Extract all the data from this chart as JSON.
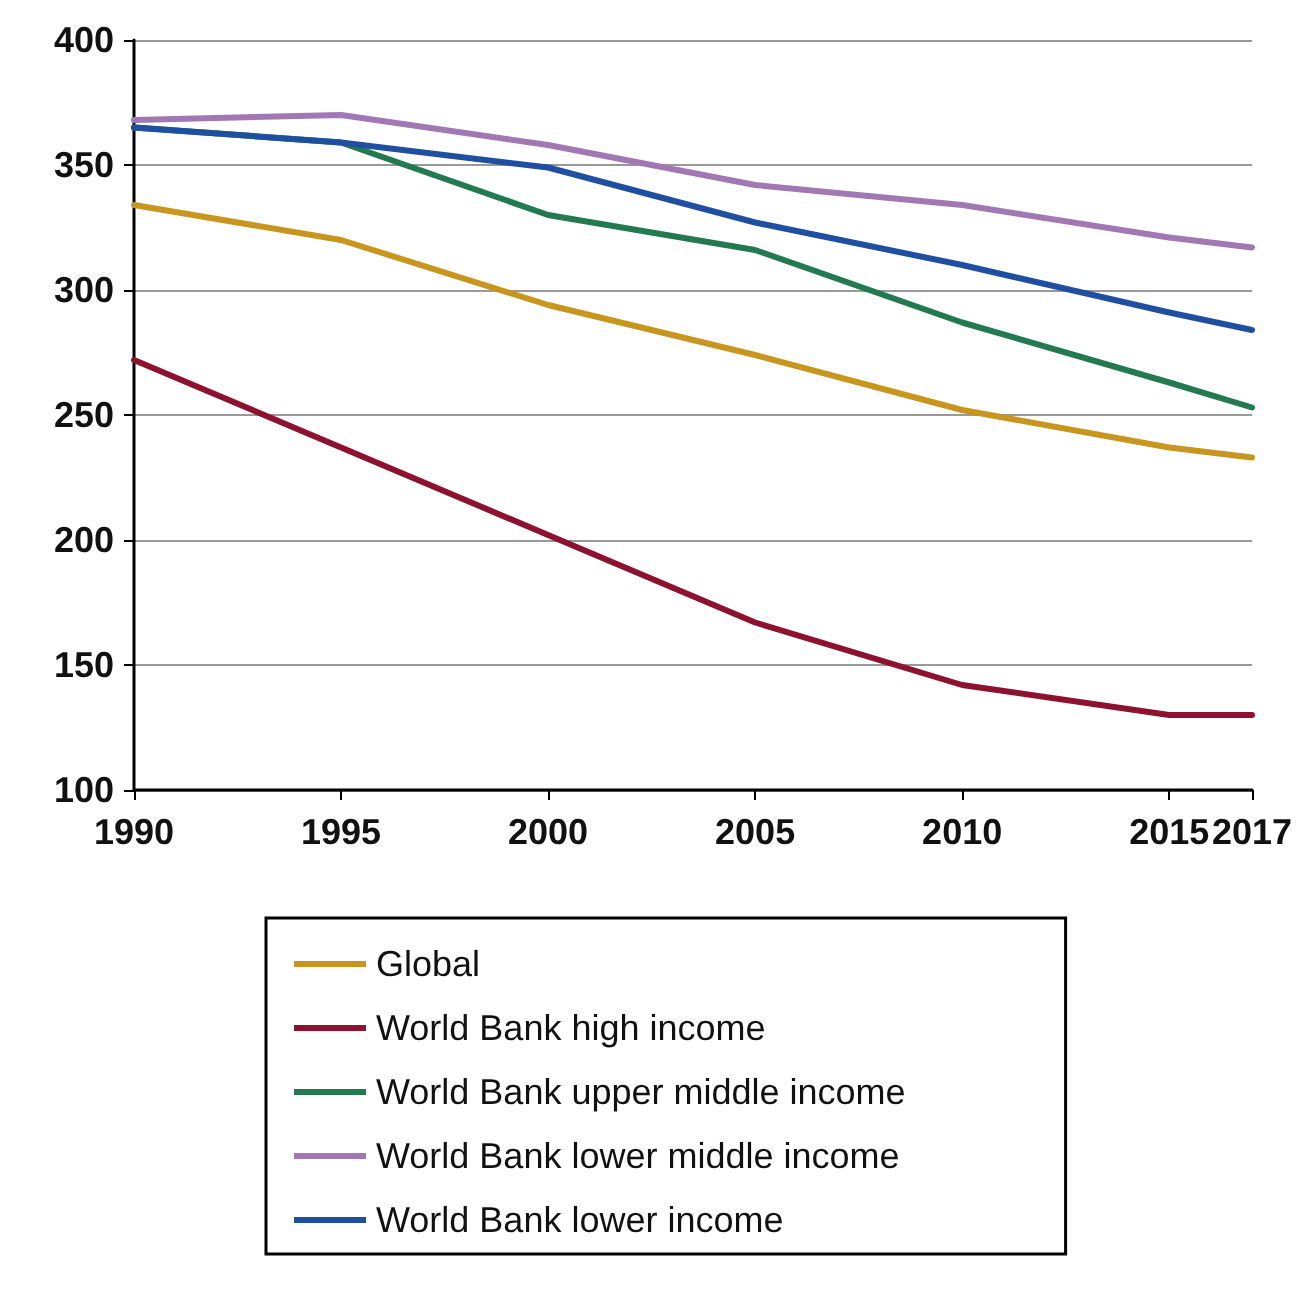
{
  "chart_data": {
    "type": "line",
    "x": [
      1990,
      1995,
      2000,
      2005,
      2010,
      2015,
      2017
    ],
    "series": [
      {
        "name": "Global",
        "color": "#c8961e",
        "values": [
          334,
          320,
          294,
          274,
          252,
          237,
          233
        ]
      },
      {
        "name": "World Bank high income",
        "color": "#8c1230",
        "values": [
          272,
          237,
          202,
          167,
          142,
          130,
          130
        ]
      },
      {
        "name": "World Bank upper middle income",
        "color": "#237a50",
        "values": [
          365,
          359,
          330,
          316,
          287,
          263,
          253
        ]
      },
      {
        "name": "World Bank lower middle income",
        "color": "#a278b4",
        "values": [
          368,
          370,
          358,
          342,
          334,
          321,
          317
        ]
      },
      {
        "name": "World Bank lower income",
        "color": "#1f4fa0",
        "values": [
          365,
          359,
          349,
          327,
          310,
          291,
          284
        ]
      }
    ],
    "xlim": [
      1990,
      2017
    ],
    "xticks": [
      1990,
      1995,
      2000,
      2005,
      2010,
      2015,
      2017
    ],
    "ylim": [
      100,
      400
    ],
    "yticks": [
      100,
      150,
      200,
      250,
      300,
      350,
      400
    ],
    "grid": "y",
    "legend": "bottom",
    "marker": "none",
    "line_style": "solid"
  }
}
